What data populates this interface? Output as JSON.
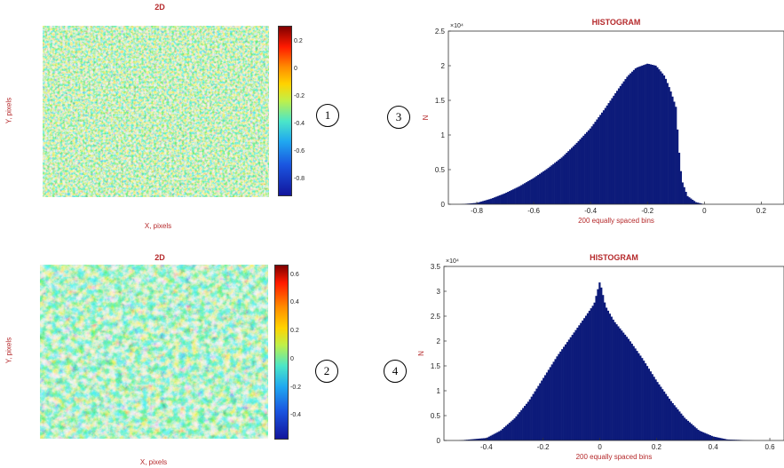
{
  "panels": [
    {
      "id": 1,
      "title": "2D",
      "xlabel": "X, pixels",
      "ylabel": "Y, pixels",
      "colorbar_ticks": [
        "0.2",
        "0",
        "-0.2",
        "-0.4",
        "-0.6",
        "-0.8"
      ],
      "colorbar_values": [
        0.2,
        0,
        -0.2,
        -0.4,
        -0.6,
        -0.8
      ],
      "colorbar_range": [
        -0.9,
        0.32
      ]
    },
    {
      "id": 2,
      "title": "2D",
      "xlabel": "X, pixels",
      "ylabel": "Y, pixels",
      "colorbar_ticks": [
        "0.6",
        "0.4",
        "0.2",
        "0",
        "-0.2",
        "-0.4"
      ],
      "colorbar_values": [
        0.6,
        0.4,
        0.2,
        0,
        -0.2,
        -0.4
      ],
      "colorbar_range": [
        -0.55,
        0.68
      ]
    }
  ],
  "circle_labels": [
    "1",
    "2",
    "3",
    "4"
  ],
  "chart_data": [
    {
      "type": "bar",
      "title": "HISTOGRAM",
      "xlabel": "200 equally spaced bins",
      "ylabel": "N",
      "exponent_label": "×10⁴",
      "xlim": [
        -0.9,
        0.28
      ],
      "ylim": [
        0,
        2.5
      ],
      "xticks": [
        -0.8,
        -0.6,
        -0.4,
        -0.2,
        0,
        0.2
      ],
      "yticks": [
        0,
        0.5,
        1,
        1.5,
        2,
        2.5
      ],
      "bar_color": "#0d1b7a",
      "x": [
        -0.86,
        -0.8,
        -0.75,
        -0.7,
        -0.65,
        -0.6,
        -0.55,
        -0.5,
        -0.45,
        -0.4,
        -0.35,
        -0.3,
        -0.27,
        -0.24,
        -0.2,
        -0.17,
        -0.14,
        -0.12,
        -0.1,
        -0.09,
        -0.08,
        -0.06,
        -0.03,
        0
      ],
      "y": [
        0,
        0.02,
        0.08,
        0.16,
        0.26,
        0.38,
        0.52,
        0.68,
        0.88,
        1.1,
        1.38,
        1.68,
        1.85,
        1.97,
        2.03,
        2.0,
        1.85,
        1.65,
        1.4,
        0.8,
        0.35,
        0.12,
        0.03,
        0
      ]
    },
    {
      "type": "bar",
      "title": "HISTOGRAM",
      "xlabel": "200 equally spaced bins",
      "ylabel": "N",
      "exponent_label": "×10⁴",
      "xlim": [
        -0.55,
        0.65
      ],
      "ylim": [
        0,
        3.5
      ],
      "xticks": [
        -0.4,
        -0.2,
        0,
        0.2,
        0.4,
        0.6
      ],
      "yticks": [
        0,
        0.5,
        1,
        1.5,
        2,
        2.5,
        3,
        3.5
      ],
      "bar_color": "#0d1b7a",
      "x": [
        -0.5,
        -0.4,
        -0.35,
        -0.3,
        -0.25,
        -0.2,
        -0.15,
        -0.1,
        -0.05,
        -0.02,
        0,
        0.02,
        0.05,
        0.1,
        0.15,
        0.2,
        0.25,
        0.3,
        0.35,
        0.4,
        0.45,
        0.55
      ],
      "y": [
        0,
        0.05,
        0.2,
        0.45,
        0.8,
        1.25,
        1.7,
        2.1,
        2.5,
        2.75,
        3.2,
        2.7,
        2.4,
        2.05,
        1.65,
        1.2,
        0.8,
        0.45,
        0.2,
        0.08,
        0.02,
        0
      ]
    }
  ]
}
